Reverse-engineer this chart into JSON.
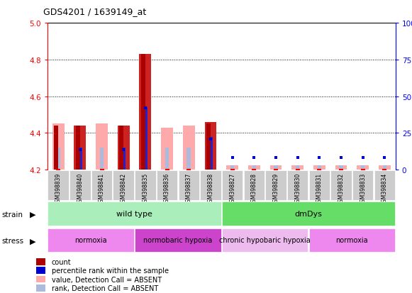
{
  "title": "GDS4201 / 1639149_at",
  "samples": [
    "GSM398839",
    "GSM398840",
    "GSM398841",
    "GSM398842",
    "GSM398835",
    "GSM398836",
    "GSM398837",
    "GSM398838",
    "GSM398827",
    "GSM398828",
    "GSM398829",
    "GSM398830",
    "GSM398831",
    "GSM398832",
    "GSM398833",
    "GSM398834"
  ],
  "ylim_left": [
    4.2,
    5.0
  ],
  "ylim_right": [
    0,
    100
  ],
  "yticks_left": [
    4.2,
    4.4,
    4.6,
    4.8,
    5.0
  ],
  "yticks_right": [
    0,
    25,
    50,
    75,
    100
  ],
  "value_bars": [
    4.45,
    4.44,
    4.45,
    4.44,
    4.83,
    4.43,
    4.44,
    4.46,
    4.225,
    4.225,
    4.225,
    4.225,
    4.225,
    4.225,
    4.225,
    4.225
  ],
  "rank_bars": [
    4.32,
    4.32,
    4.32,
    4.32,
    4.54,
    4.32,
    4.32,
    4.38,
    4.225,
    4.225,
    4.225,
    4.225,
    4.225,
    4.225,
    4.225,
    4.225
  ],
  "count_bars": [
    4.44,
    4.44,
    null,
    4.44,
    4.83,
    null,
    null,
    4.45,
    null,
    null,
    null,
    null,
    null,
    null,
    null,
    null
  ],
  "percentile_ranks": [
    null,
    4.31,
    null,
    4.31,
    4.535,
    null,
    null,
    4.365,
    4.265,
    4.265,
    4.265,
    4.265,
    4.265,
    4.265,
    4.265,
    4.265
  ],
  "detection_absent": [
    true,
    false,
    true,
    false,
    false,
    true,
    true,
    false,
    true,
    true,
    true,
    true,
    true,
    true,
    true,
    true
  ],
  "color_value_present": "#cc2222",
  "color_value_absent": "#ffaaaa",
  "color_rank_present": "#2222cc",
  "color_rank_absent": "#aabbdd",
  "color_count": "#aa0000",
  "color_percentile": "#0000cc",
  "strain_groups": [
    {
      "label": "wild type",
      "start": 0,
      "end": 7,
      "color": "#aaeebb"
    },
    {
      "label": "dmDys",
      "start": 8,
      "end": 15,
      "color": "#66dd66"
    }
  ],
  "stress_groups": [
    {
      "label": "normoxia",
      "start": 0,
      "end": 3,
      "color": "#ee88ee"
    },
    {
      "label": "normobaric hypoxia",
      "start": 4,
      "end": 7,
      "color": "#cc44cc"
    },
    {
      "label": "chronic hypobaric hypoxia",
      "start": 8,
      "end": 11,
      "color": "#eebbee"
    },
    {
      "label": "normoxia",
      "start": 12,
      "end": 15,
      "color": "#ee88ee"
    }
  ],
  "base": 4.2
}
